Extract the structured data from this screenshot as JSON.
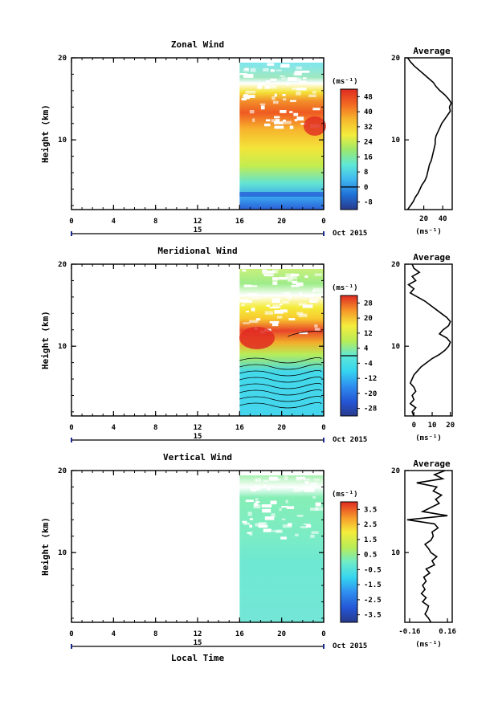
{
  "figure": {
    "xlabel": "Local Time",
    "date_label": "Oct 2015",
    "day_label": "15"
  },
  "chart_data": [
    {
      "id": "zonal",
      "type": "heatmap",
      "title": "Zonal Wind",
      "ylabel": "Height (km)",
      "xlabel": "Local Time",
      "x_ticks": [
        "0",
        "4",
        "8",
        "12",
        "16",
        "20",
        "0"
      ],
      "x_range_hours": [
        0,
        24
      ],
      "data_start_hour": 16,
      "y_ticks": [
        "10",
        "20"
      ],
      "ylim_km": [
        1.5,
        20
      ],
      "colorbar": {
        "unit": "(ms⁻¹)",
        "ticks": [
          "-8",
          "0",
          "8",
          "16",
          "24",
          "32",
          "40",
          "48"
        ],
        "range": [
          -12,
          52
        ],
        "zero_line": 0
      },
      "profile": {
        "title": "Average",
        "unit": "(ms⁻¹)",
        "x_ticks": [
          "20",
          "40"
        ],
        "xlim": [
          0,
          50
        ],
        "heights_km": [
          1.5,
          2,
          2.5,
          3,
          3.5,
          4,
          4.5,
          5,
          5.5,
          6,
          6.5,
          7,
          7.5,
          8,
          8.5,
          9,
          9.5,
          10,
          10.5,
          11,
          11.5,
          12,
          12.5,
          13,
          13.5,
          14,
          14.5,
          15,
          15.5,
          16,
          16.5,
          17,
          17.5,
          18,
          18.5,
          19,
          19.5,
          20
        ],
        "values": [
          3,
          6,
          9,
          11,
          14,
          16,
          18,
          21,
          23,
          24,
          25,
          26,
          28,
          29,
          30,
          31,
          32,
          32,
          33,
          35,
          37,
          39,
          42,
          45,
          48,
          47,
          49,
          46,
          42,
          37,
          33,
          30,
          25,
          20,
          15,
          10,
          6,
          3
        ]
      }
    },
    {
      "id": "meridional",
      "type": "heatmap",
      "title": "Meridional Wind",
      "ylabel": "Height (km)",
      "xlabel": "Local Time",
      "x_ticks": [
        "0",
        "4",
        "8",
        "12",
        "16",
        "20",
        "0"
      ],
      "x_range_hours": [
        0,
        24
      ],
      "data_start_hour": 16,
      "y_ticks": [
        "10",
        "20"
      ],
      "ylim_km": [
        1.5,
        20
      ],
      "colorbar": {
        "unit": "(ms⁻¹)",
        "ticks": [
          "-28",
          "-20",
          "-12",
          "-4",
          "4",
          "12",
          "20",
          "28"
        ],
        "range": [
          -32,
          32
        ],
        "zero_line": 0
      },
      "profile": {
        "title": "Average",
        "unit": "(ms⁻¹)",
        "x_ticks": [
          "0",
          "10",
          "20"
        ],
        "xlim": [
          -5,
          21
        ],
        "heights_km": [
          1.5,
          2,
          2.5,
          3,
          3.5,
          4,
          4.5,
          5,
          5.5,
          6,
          6.5,
          7,
          7.5,
          8,
          8.5,
          9,
          9.5,
          10,
          10.5,
          11,
          11.5,
          12,
          12.5,
          13,
          13.5,
          14,
          14.5,
          15,
          15.5,
          16,
          16.5,
          17,
          17.5,
          18,
          18.5,
          19,
          19.5,
          20
        ],
        "values": [
          0,
          -1,
          1,
          -2,
          0,
          -1,
          1,
          0,
          -2,
          -1,
          0,
          2,
          4,
          7,
          10,
          14,
          17,
          19,
          20,
          18,
          14,
          16,
          19,
          20,
          18,
          15,
          12,
          9,
          6,
          2,
          -2,
          0,
          -3,
          1,
          -1,
          3,
          0,
          -1
        ]
      }
    },
    {
      "id": "vertical",
      "type": "heatmap",
      "title": "Vertical Wind",
      "ylabel": "Height (km)",
      "xlabel": "Local Time",
      "x_ticks": [
        "0",
        "4",
        "8",
        "12",
        "16",
        "20",
        "0"
      ],
      "x_range_hours": [
        0,
        24
      ],
      "data_start_hour": 16,
      "y_ticks": [
        "10",
        "20"
      ],
      "ylim_km": [
        1.5,
        20
      ],
      "colorbar": {
        "unit": "(ms⁻¹)",
        "ticks": [
          "-3.5",
          "-2.5",
          "-1.5",
          "-0.5",
          "0.5",
          "1.5",
          "2.5",
          "3.5"
        ],
        "range": [
          -4,
          4
        ],
        "zero_line": null
      },
      "profile": {
        "title": "Average",
        "unit": "(ms⁻¹)",
        "x_ticks": [
          "-0.16",
          "0.16"
        ],
        "xlim": [
          -0.2,
          0.2
        ],
        "heights_km": [
          1.5,
          2,
          2.5,
          3,
          3.5,
          4,
          4.5,
          5,
          5.5,
          6,
          6.5,
          7,
          7.5,
          8,
          8.5,
          9,
          9.5,
          10,
          10.5,
          11,
          11.5,
          12,
          12.5,
          13,
          13.5,
          14,
          14.5,
          15,
          15.5,
          16,
          16.5,
          17,
          17.5,
          18,
          18.5,
          19,
          19.5,
          20
        ],
        "values": [
          0.02,
          0.0,
          -0.03,
          -0.01,
          0.0,
          -0.05,
          -0.02,
          -0.06,
          -0.03,
          -0.05,
          -0.02,
          -0.04,
          0.01,
          -0.02,
          0.05,
          0.03,
          0.07,
          0.02,
          0.0,
          -0.03,
          0.02,
          0.04,
          0.03,
          0.08,
          0.05,
          -0.18,
          0.16,
          -0.05,
          0.02,
          0.09,
          0.06,
          0.11,
          0.04,
          0.07,
          -0.1,
          0.12,
          0.05,
          0.14
        ]
      }
    }
  ]
}
